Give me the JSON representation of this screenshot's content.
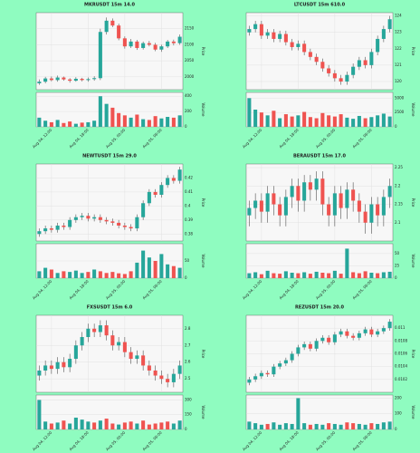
{
  "chart_data": [
    {
      "type": "candlestick",
      "title": "MKRUSDT 15m 14.0",
      "ylabel": "Price",
      "volume_label": "Volume",
      "up_color": "#26a69a",
      "down_color": "#ef5350",
      "open": [
        1980,
        1985,
        1995,
        1990,
        1998,
        1992,
        1988,
        1994,
        1990,
        1993,
        1996,
        2140,
        2175,
        2160,
        2120,
        2095,
        2110,
        2090,
        2105,
        2100,
        2085,
        2095,
        2110,
        2105
      ],
      "high": [
        1992,
        2000,
        2001,
        2004,
        2001,
        1996,
        1999,
        1997,
        1998,
        2002,
        2150,
        2185,
        2182,
        2166,
        2126,
        2118,
        2115,
        2110,
        2112,
        2106,
        2100,
        2115,
        2116,
        2132
      ],
      "low": [
        1975,
        1980,
        1986,
        1985,
        1988,
        1982,
        1985,
        1986,
        1985,
        1988,
        1990,
        2132,
        2155,
        2114,
        2088,
        2090,
        2084,
        2085,
        2095,
        2080,
        2078,
        2090,
        2098,
        2100
      ],
      "close": [
        1985,
        1995,
        1990,
        1998,
        1992,
        1988,
        1994,
        1990,
        1993,
        1996,
        2140,
        2175,
        2160,
        2120,
        2095,
        2110,
        2090,
        2105,
        2100,
        2085,
        2095,
        2110,
        2105,
        2125
      ],
      "volume": [
        120,
        80,
        60,
        90,
        50,
        70,
        40,
        55,
        60,
        80,
        400,
        300,
        250,
        180,
        150,
        120,
        160,
        100,
        90,
        140,
        110,
        130,
        120,
        150
      ],
      "ylim": [
        1960,
        2200
      ],
      "yticks": [
        2000,
        2050,
        2100,
        2150
      ],
      "volume_lim": [
        0,
        450
      ],
      "volume_ticks": [
        0,
        200,
        400
      ],
      "xticks": [
        {
          "value": 2,
          "label": "Aug 04, 12:00"
        },
        {
          "value": 8,
          "label": "Aug 04, 18:00"
        },
        {
          "value": 14,
          "label": "Aug 05, 00:00"
        },
        {
          "value": 20,
          "label": "Aug 05, 06:00"
        }
      ]
    },
    {
      "type": "candlestick",
      "title": "LTCUSDT 15m 610.0",
      "ylabel": "Price",
      "volume_label": "Volume",
      "up_color": "#26a69a",
      "down_color": "#ef5350",
      "open": [
        123.0,
        123.2,
        123.5,
        122.8,
        123.0,
        122.6,
        122.9,
        122.4,
        122.1,
        122.3,
        121.8,
        121.5,
        121.2,
        120.8,
        120.5,
        120.2,
        120.0,
        120.4,
        120.9,
        121.3,
        121.0,
        121.8,
        122.6,
        123.2
      ],
      "high": [
        123.4,
        123.7,
        123.7,
        123.2,
        123.2,
        123.1,
        123.1,
        122.6,
        122.5,
        122.5,
        122.0,
        121.7,
        121.4,
        121.0,
        120.7,
        120.4,
        120.6,
        121.1,
        121.5,
        121.5,
        122.0,
        122.8,
        123.4,
        124.0
      ],
      "low": [
        122.8,
        123.0,
        122.6,
        122.6,
        122.4,
        122.4,
        122.2,
        121.9,
        121.9,
        121.6,
        121.3,
        121.0,
        120.6,
        120.3,
        120.0,
        119.8,
        119.8,
        120.2,
        120.7,
        120.8,
        120.8,
        121.6,
        122.4,
        123.0
      ],
      "close": [
        123.2,
        123.5,
        122.8,
        123.0,
        122.6,
        122.9,
        122.4,
        122.1,
        122.3,
        121.8,
        121.5,
        121.2,
        120.8,
        120.5,
        120.2,
        120.0,
        120.4,
        120.9,
        121.3,
        121.0,
        121.8,
        122.6,
        123.2,
        123.8
      ],
      "volume": [
        5000,
        3000,
        2500,
        2000,
        2800,
        1500,
        2200,
        1800,
        2000,
        2600,
        1700,
        1500,
        2400,
        2000,
        1800,
        2200,
        1600,
        1400,
        1900,
        1500,
        1700,
        2000,
        2300,
        1800
      ],
      "ylim": [
        119.5,
        124.2
      ],
      "yticks": [
        120,
        121,
        122,
        123,
        124
      ],
      "volume_lim": [
        0,
        6000
      ],
      "volume_ticks": [
        0,
        2500,
        5000
      ],
      "xticks": [
        {
          "value": 2,
          "label": "Aug 04, 12:00"
        },
        {
          "value": 8,
          "label": "Aug 04, 18:00"
        },
        {
          "value": 14,
          "label": "Aug 05, 00:00"
        },
        {
          "value": 20,
          "label": "Aug 05, 06:00"
        }
      ]
    },
    {
      "type": "candlestick",
      "title": "NEWTUSDT 15m 29.0",
      "ylabel": "Price",
      "volume_label": "Volume",
      "up_color": "#26a69a",
      "down_color": "#ef5350",
      "open": [
        0.38,
        0.382,
        0.384,
        0.383,
        0.386,
        0.385,
        0.39,
        0.392,
        0.393,
        0.391,
        0.392,
        0.39,
        0.389,
        0.388,
        0.386,
        0.385,
        0.384,
        0.392,
        0.402,
        0.41,
        0.408,
        0.415,
        0.42,
        0.418
      ],
      "high": [
        0.384,
        0.386,
        0.386,
        0.388,
        0.388,
        0.392,
        0.394,
        0.395,
        0.395,
        0.394,
        0.394,
        0.392,
        0.391,
        0.39,
        0.388,
        0.387,
        0.394,
        0.404,
        0.412,
        0.412,
        0.417,
        0.422,
        0.422,
        0.428
      ],
      "low": [
        0.378,
        0.38,
        0.381,
        0.381,
        0.383,
        0.383,
        0.388,
        0.39,
        0.389,
        0.389,
        0.388,
        0.387,
        0.386,
        0.384,
        0.383,
        0.382,
        0.382,
        0.39,
        0.4,
        0.406,
        0.406,
        0.413,
        0.416,
        0.416
      ],
      "close": [
        0.382,
        0.384,
        0.383,
        0.386,
        0.385,
        0.39,
        0.392,
        0.393,
        0.391,
        0.392,
        0.39,
        0.389,
        0.388,
        0.386,
        0.385,
        0.384,
        0.392,
        0.402,
        0.41,
        0.408,
        0.415,
        0.42,
        0.418,
        0.426
      ],
      "volume": [
        20,
        30,
        25,
        15,
        20,
        18,
        22,
        15,
        18,
        25,
        20,
        15,
        18,
        14,
        12,
        20,
        45,
        80,
        60,
        50,
        70,
        40,
        35,
        30
      ],
      "ylim": [
        0.375,
        0.43
      ],
      "yticks": [
        0.38,
        0.39,
        0.4,
        0.41,
        0.42
      ],
      "volume_lim": [
        0,
        100
      ],
      "volume_ticks": [
        0,
        50
      ],
      "xticks": [
        {
          "value": 2,
          "label": "Aug 04, 12:00"
        },
        {
          "value": 8,
          "label": "Aug 04, 18:00"
        },
        {
          "value": 14,
          "label": "Aug 05, 00:00"
        },
        {
          "value": 20,
          "label": "Aug 05, 06:00"
        }
      ]
    },
    {
      "type": "candlestick",
      "title": "BERAUSDT 15m 17.0",
      "ylabel": "Price",
      "volume_label": "Volume",
      "up_color": "#26a69a",
      "down_color": "#ef5350",
      "open": [
        2.12,
        2.14,
        2.16,
        2.13,
        2.18,
        2.15,
        2.12,
        2.17,
        2.2,
        2.16,
        2.21,
        2.19,
        2.22,
        2.15,
        2.12,
        2.18,
        2.14,
        2.19,
        2.16,
        2.13,
        2.1,
        2.15,
        2.12,
        2.17
      ],
      "high": [
        2.16,
        2.18,
        2.18,
        2.2,
        2.2,
        2.17,
        2.19,
        2.22,
        2.22,
        2.23,
        2.23,
        2.24,
        2.24,
        2.17,
        2.2,
        2.2,
        2.21,
        2.21,
        2.18,
        2.15,
        2.17,
        2.17,
        2.19,
        2.22
      ],
      "low": [
        2.09,
        2.11,
        2.1,
        2.1,
        2.12,
        2.09,
        2.09,
        2.14,
        2.13,
        2.13,
        2.16,
        2.16,
        2.12,
        2.09,
        2.09,
        2.11,
        2.11,
        2.13,
        2.1,
        2.07,
        2.07,
        2.09,
        2.09,
        2.14
      ],
      "close": [
        2.14,
        2.16,
        2.13,
        2.18,
        2.15,
        2.12,
        2.17,
        2.2,
        2.16,
        2.21,
        2.19,
        2.22,
        2.15,
        2.12,
        2.18,
        2.14,
        2.19,
        2.16,
        2.13,
        2.1,
        2.15,
        2.12,
        2.17,
        2.2
      ],
      "volume": [
        10,
        12,
        8,
        15,
        10,
        9,
        14,
        11,
        10,
        12,
        9,
        13,
        11,
        10,
        15,
        9,
        60,
        12,
        10,
        14,
        11,
        10,
        12,
        13
      ],
      "ylim": [
        2.05,
        2.26
      ],
      "yticks": [
        2.1,
        2.15,
        2.2,
        2.25
      ],
      "volume_lim": [
        0,
        70
      ],
      "volume_ticks": [
        0,
        25,
        50
      ],
      "xticks": [
        {
          "value": 2,
          "label": "Aug 04, 12:00"
        },
        {
          "value": 8,
          "label": "Aug 04, 18:00"
        },
        {
          "value": 14,
          "label": "Aug 05, 00:00"
        },
        {
          "value": 20,
          "label": "Aug 05, 06:00"
        }
      ]
    },
    {
      "type": "candlestick",
      "title": "FXSUSDT 15m 6.0",
      "ylabel": "Price",
      "volume_label": "Volume",
      "up_color": "#26a69a",
      "down_color": "#ef5350",
      "open": [
        2.52,
        2.55,
        2.58,
        2.56,
        2.6,
        2.57,
        2.62,
        2.7,
        2.75,
        2.8,
        2.78,
        2.82,
        2.76,
        2.7,
        2.72,
        2.66,
        2.62,
        2.64,
        2.58,
        2.55,
        2.52,
        2.5,
        2.48,
        2.53
      ],
      "high": [
        2.58,
        2.61,
        2.61,
        2.63,
        2.63,
        2.65,
        2.73,
        2.78,
        2.83,
        2.83,
        2.85,
        2.85,
        2.79,
        2.75,
        2.75,
        2.69,
        2.67,
        2.67,
        2.61,
        2.58,
        2.55,
        2.53,
        2.56,
        2.61
      ],
      "low": [
        2.49,
        2.52,
        2.53,
        2.53,
        2.54,
        2.54,
        2.59,
        2.67,
        2.72,
        2.75,
        2.75,
        2.73,
        2.67,
        2.67,
        2.63,
        2.59,
        2.59,
        2.55,
        2.52,
        2.49,
        2.47,
        2.45,
        2.45,
        2.5
      ],
      "close": [
        2.55,
        2.58,
        2.56,
        2.6,
        2.57,
        2.62,
        2.7,
        2.75,
        2.8,
        2.78,
        2.82,
        2.76,
        2.7,
        2.72,
        2.66,
        2.62,
        2.64,
        2.58,
        2.55,
        2.52,
        2.5,
        2.48,
        2.53,
        2.58
      ],
      "volume": [
        300,
        80,
        60,
        70,
        90,
        60,
        120,
        100,
        80,
        70,
        90,
        110,
        60,
        50,
        70,
        80,
        60,
        90,
        50,
        60,
        70,
        80,
        60,
        90
      ],
      "ylim": [
        2.42,
        2.88
      ],
      "yticks": [
        2.5,
        2.6,
        2.7,
        2.8
      ],
      "volume_lim": [
        0,
        350
      ],
      "volume_ticks": [
        0,
        150,
        300
      ],
      "xticks": [
        {
          "value": 2,
          "label": "Aug 04, 12:00"
        },
        {
          "value": 8,
          "label": "Aug 04, 18:00"
        },
        {
          "value": 14,
          "label": "Aug 05, 00:00"
        },
        {
          "value": 20,
          "label": "Aug 05, 06:00"
        }
      ]
    },
    {
      "type": "candlestick",
      "title": "REZUSDT 15m 20.0",
      "ylabel": "Price",
      "volume_label": "Volume",
      "up_color": "#26a69a",
      "down_color": "#ef5350",
      "open": [
        0.01015,
        0.0102,
        0.01025,
        0.0103,
        0.01028,
        0.0104,
        0.01045,
        0.0105,
        0.0106,
        0.0107,
        0.01075,
        0.01068,
        0.0108,
        0.01085,
        0.01078,
        0.0109,
        0.01095,
        0.01088,
        0.01085,
        0.01092,
        0.01098,
        0.0109,
        0.01095,
        0.011
      ],
      "high": [
        0.01024,
        0.01029,
        0.01034,
        0.01034,
        0.01044,
        0.01049,
        0.01054,
        0.01064,
        0.01074,
        0.01079,
        0.01079,
        0.01084,
        0.01089,
        0.01089,
        0.01094,
        0.01099,
        0.01099,
        0.01092,
        0.01096,
        0.01102,
        0.01102,
        0.01099,
        0.01104,
        0.01114
      ],
      "low": [
        0.01011,
        0.01016,
        0.01021,
        0.01024,
        0.01024,
        0.01036,
        0.01041,
        0.01046,
        0.01056,
        0.01066,
        0.01064,
        0.01064,
        0.01076,
        0.01074,
        0.01074,
        0.01086,
        0.01084,
        0.01081,
        0.01081,
        0.01088,
        0.01086,
        0.01086,
        0.01091,
        0.01096
      ],
      "close": [
        0.0102,
        0.01025,
        0.0103,
        0.01028,
        0.0104,
        0.01045,
        0.0105,
        0.0106,
        0.0107,
        0.01075,
        0.01068,
        0.0108,
        0.01085,
        0.01078,
        0.0109,
        0.01095,
        0.01088,
        0.01085,
        0.01092,
        0.01098,
        0.0109,
        0.01095,
        0.011,
        0.0111
      ],
      "volume": [
        50,
        40,
        30,
        35,
        45,
        30,
        40,
        35,
        200,
        40,
        30,
        35,
        30,
        40,
        35,
        30,
        45,
        40,
        35,
        30,
        40,
        35,
        45,
        50
      ],
      "ylim": [
        0.01,
        0.0112
      ],
      "yticks": [
        0.0102,
        0.0104,
        0.0106,
        0.0108,
        0.011
      ],
      "volume_lim": [
        0,
        220
      ],
      "volume_ticks": [
        0,
        100,
        200
      ],
      "xticks": [
        {
          "value": 2,
          "label": "Aug 04, 12:00"
        },
        {
          "value": 8,
          "label": "Aug 04, 18:00"
        },
        {
          "value": 14,
          "label": "Aug 05, 00:00"
        },
        {
          "value": 20,
          "label": "Aug 05, 06:00"
        }
      ]
    }
  ]
}
